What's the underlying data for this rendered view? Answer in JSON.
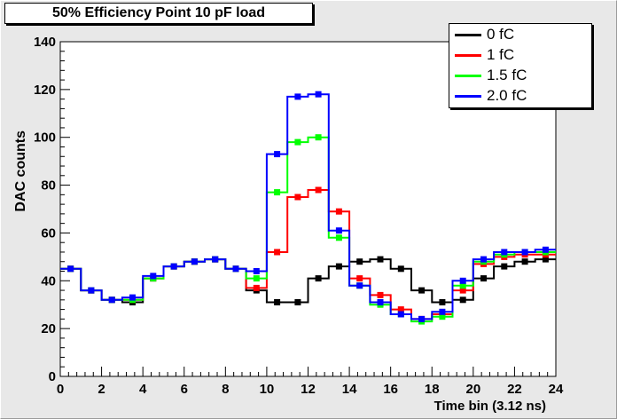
{
  "chart_data": {
    "type": "line",
    "title": "50% Efficiency Point 10 pF load",
    "xlabel": "Time bin (3.12 ns)",
    "ylabel": "DAC counts",
    "xlim": [
      0,
      24
    ],
    "ylim": [
      0,
      140
    ],
    "xticks": [
      "0",
      "2",
      "4",
      "6",
      "8",
      "10",
      "12",
      "14",
      "16",
      "18",
      "20",
      "22",
      "24"
    ],
    "yticks": [
      "0",
      "20",
      "40",
      "60",
      "80",
      "100",
      "120",
      "140"
    ],
    "grid": false,
    "legend_position": "top-right",
    "x": [
      0.5,
      1.5,
      2.5,
      3.5,
      4.5,
      5.5,
      6.5,
      7.5,
      8.5,
      9.5,
      10.5,
      11.5,
      12.5,
      13.5,
      14.5,
      15.5,
      16.5,
      17.5,
      18.5,
      19.5,
      20.5,
      21.5,
      22.5,
      23.5
    ],
    "series": [
      {
        "name": "0 fC",
        "color": "#000000",
        "values": [
          45,
          36,
          32,
          31,
          41,
          46,
          48,
          49,
          45,
          36,
          31,
          31,
          41,
          46,
          48,
          49,
          45,
          36,
          31,
          32,
          41,
          46,
          48,
          49
        ]
      },
      {
        "name": "1 fC",
        "color": "#ff0000",
        "values": [
          45,
          36,
          32,
          32,
          41,
          46,
          48,
          49,
          45,
          37,
          52,
          75,
          78,
          69,
          41,
          34,
          28,
          24,
          26,
          36,
          47,
          50,
          51,
          51
        ]
      },
      {
        "name": "1.5 fC",
        "color": "#00ff00",
        "values": [
          45,
          36,
          32,
          32,
          41,
          46,
          48,
          49,
          45,
          41,
          77,
          98,
          100,
          58,
          38,
          30,
          26,
          23,
          25,
          38,
          48,
          51,
          52,
          52
        ]
      },
      {
        "name": "2.0 fC",
        "color": "#0000ff",
        "values": [
          45,
          36,
          32,
          33,
          42,
          46,
          48,
          49,
          45,
          44,
          93,
          117,
          118,
          61,
          38,
          31,
          26,
          24,
          27,
          40,
          49,
          52,
          52,
          53
        ]
      }
    ]
  }
}
